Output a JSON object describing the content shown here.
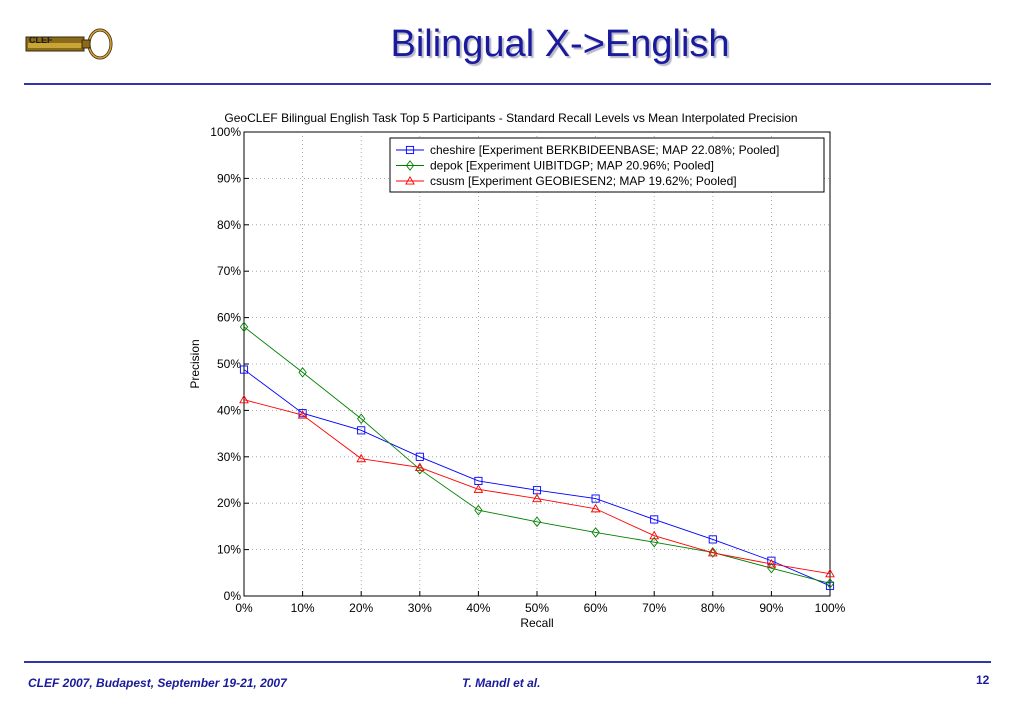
{
  "slide": {
    "title": "Bilingual X->English",
    "logo_text": "CLEF"
  },
  "footer": {
    "left": "CLEF 2007, Budapest, September 19-21, 2007",
    "center": "T. Mandl et al.",
    "page": "12"
  },
  "chart_data": {
    "type": "line",
    "title": "GeoCLEF Bilingual English Task Top 5 Participants -  Standard Recall Levels vs Mean Interpolated Precision",
    "xlabel": "Recall",
    "ylabel": "Precision",
    "x": [
      0,
      10,
      20,
      30,
      40,
      50,
      60,
      70,
      80,
      90,
      100
    ],
    "x_tick_labels": [
      "0%",
      "10%",
      "20%",
      "30%",
      "40%",
      "50%",
      "60%",
      "70%",
      "80%",
      "90%",
      "100%"
    ],
    "y_tick_labels": [
      "0%",
      "10%",
      "20%",
      "30%",
      "40%",
      "50%",
      "60%",
      "70%",
      "80%",
      "90%",
      "100%"
    ],
    "xlim": [
      0,
      100
    ],
    "ylim": [
      0,
      100
    ],
    "grid": true,
    "legend_position": "top-right",
    "series": [
      {
        "name": "cheshire [Experiment BERKBIDEENBASE; MAP 22.08%; Pooled]",
        "color": "#0000ff",
        "marker": "square",
        "values": [
          48.8,
          39.4,
          35.7,
          30.0,
          24.8,
          22.8,
          21.0,
          16.5,
          12.2,
          7.6,
          2.2
        ]
      },
      {
        "name": "depok [Experiment UIBITDGP; MAP 20.96%; Pooled]",
        "color": "#008000",
        "marker": "diamond",
        "values": [
          58.0,
          48.2,
          38.2,
          27.3,
          18.5,
          16.0,
          13.7,
          11.6,
          9.4,
          6.0,
          2.7
        ]
      },
      {
        "name": "csusm [Experiment GEOBIESEN2; MAP 19.62%; Pooled]",
        "color": "#ff0000",
        "marker": "triangle",
        "values": [
          42.3,
          39.0,
          29.6,
          27.7,
          23.0,
          21.0,
          18.8,
          13.0,
          9.3,
          6.9,
          4.8
        ]
      }
    ]
  }
}
